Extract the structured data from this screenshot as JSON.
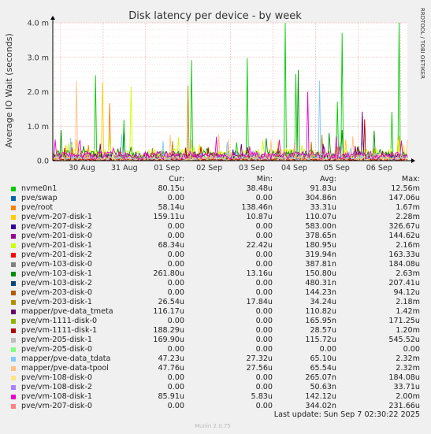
{
  "chart_data": {
    "type": "line",
    "title": "Disk latency per device - by week",
    "ylabel": "Average IO Wait (seconds)",
    "ylim": [
      0,
      4.0
    ],
    "y_unit": "m",
    "y_ticks": [
      {
        "value": 0.0,
        "label": "0.0"
      },
      {
        "value": 1.0,
        "label": "1.0 m"
      },
      {
        "value": 2.0,
        "label": "2.0 m"
      },
      {
        "value": 3.0,
        "label": "3.0 m"
      },
      {
        "value": 4.0,
        "label": "4.0 m"
      }
    ],
    "x_ticks": [
      "30 Aug",
      "31 Aug",
      "01 Sep",
      "02 Sep",
      "03 Sep",
      "04 Sep",
      "05 Sep",
      "06 Sep"
    ],
    "grid": true,
    "side_label": "RRDTOOL / TOBI OETIKER",
    "columns": [
      "Cur:",
      "Min:",
      "Avg:",
      "Max:"
    ],
    "series": [
      {
        "name": "nvme0n1",
        "color": "#00cc00",
        "cur": "80.15u",
        "min": "38.48u",
        "avg": "91.83u",
        "max": "12.56m"
      },
      {
        "name": "pve/swap",
        "color": "#0066b3",
        "cur": "0.00",
        "min": "0.00",
        "avg": "304.86n",
        "max": "147.06u"
      },
      {
        "name": "pve/root",
        "color": "#ff8000",
        "cur": "58.14u",
        "min": "138.46n",
        "avg": "33.31u",
        "max": "1.67m"
      },
      {
        "name": "pve/vm-207-disk-1",
        "color": "#ffcc00",
        "cur": "159.11u",
        "min": "10.87u",
        "avg": "110.07u",
        "max": "2.28m"
      },
      {
        "name": "pve/vm-207-disk-2",
        "color": "#330099",
        "cur": "0.00",
        "min": "0.00",
        "avg": "583.00n",
        "max": "326.67u"
      },
      {
        "name": "pve/vm-201-disk-0",
        "color": "#990099",
        "cur": "0.00",
        "min": "0.00",
        "avg": "378.65n",
        "max": "144.62u"
      },
      {
        "name": "pve/vm-201-disk-1",
        "color": "#ccff00",
        "cur": "68.34u",
        "min": "22.42u",
        "avg": "180.95u",
        "max": "2.16m"
      },
      {
        "name": "pve/vm-201-disk-2",
        "color": "#ff0000",
        "cur": "0.00",
        "min": "0.00",
        "avg": "319.94n",
        "max": "163.33u"
      },
      {
        "name": "pve/vm-103-disk-0",
        "color": "#808080",
        "cur": "0.00",
        "min": "0.00",
        "avg": "387.81n",
        "max": "184.08u"
      },
      {
        "name": "pve/vm-103-disk-1",
        "color": "#008f00",
        "cur": "261.80u",
        "min": "13.16u",
        "avg": "150.80u",
        "max": "2.63m"
      },
      {
        "name": "pve/vm-103-disk-2",
        "color": "#00487d",
        "cur": "0.00",
        "min": "0.00",
        "avg": "480.31n",
        "max": "207.41u"
      },
      {
        "name": "pve/vm-203-disk-0",
        "color": "#b35a00",
        "cur": "0.00",
        "min": "0.00",
        "avg": "144.23n",
        "max": "94.12u"
      },
      {
        "name": "pve/vm-203-disk-1",
        "color": "#b38f00",
        "cur": "26.54u",
        "min": "17.84u",
        "avg": "34.24u",
        "max": "2.18m"
      },
      {
        "name": "mapper/pve-data_tmeta",
        "color": "#6b006b",
        "cur": "116.17u",
        "min": "0.00",
        "avg": "110.82u",
        "max": "1.42m"
      },
      {
        "name": "pve/vm-1111-disk-0",
        "color": "#8fb300",
        "cur": "0.00",
        "min": "0.00",
        "avg": "165.95n",
        "max": "171.25u"
      },
      {
        "name": "pve/vm-1111-disk-1",
        "color": "#b30000",
        "cur": "188.29u",
        "min": "0.00",
        "avg": "28.57u",
        "max": "1.20m"
      },
      {
        "name": "pve/vm-205-disk-1",
        "color": "#bebebe",
        "cur": "169.90u",
        "min": "0.00",
        "avg": "115.72u",
        "max": "545.52u"
      },
      {
        "name": "pve/vm-205-disk-0",
        "color": "#80ff80",
        "cur": "0.00",
        "min": "0.00",
        "avg": "0.00",
        "max": "0.00"
      },
      {
        "name": "mapper/pve-data_tdata",
        "color": "#80c9ff",
        "cur": "47.23u",
        "min": "27.32u",
        "avg": "65.10u",
        "max": "2.32m"
      },
      {
        "name": "mapper/pve-data-tpool",
        "color": "#ffc080",
        "cur": "47.76u",
        "min": "27.56u",
        "avg": "65.54u",
        "max": "2.32m"
      },
      {
        "name": "pve/vm-108-disk-0",
        "color": "#ffe680",
        "cur": "0.00",
        "min": "0.00",
        "avg": "265.07n",
        "max": "184.08u"
      },
      {
        "name": "pve/vm-108-disk-2",
        "color": "#aa80ff",
        "cur": "0.00",
        "min": "0.00",
        "avg": "50.63n",
        "max": "33.71u"
      },
      {
        "name": "pve/vm-108-disk-1",
        "color": "#ee00cc",
        "cur": "85.91u",
        "min": "5.83u",
        "avg": "142.12u",
        "max": "2.00m"
      },
      {
        "name": "pve/vm-207-disk-0",
        "color": "#ff8080",
        "cur": "0.00",
        "min": "0.00",
        "avg": "344.02n",
        "max": "231.66u"
      }
    ]
  },
  "last_update": "Last update: Sun Sep  7 02:30:22 2025",
  "munin_version": "Munin 2.0.75"
}
